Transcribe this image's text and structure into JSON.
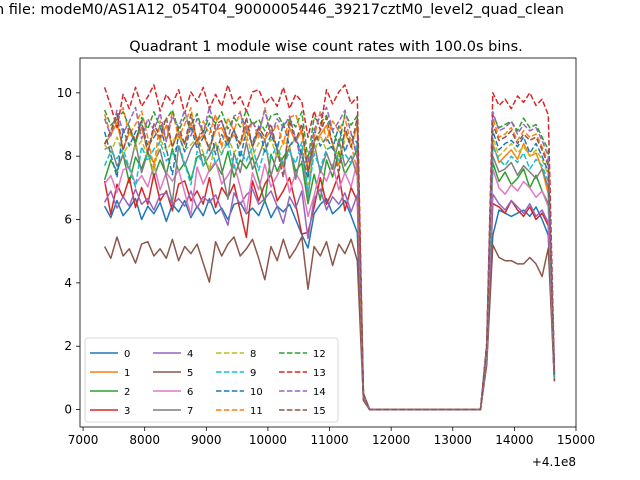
{
  "chart_data": {
    "type": "line",
    "suptitle": "n file: modeM0/AS1A12_054T04_9000005446_39217cztM0_level2_quad_clean",
    "title": "Quadrant 1 module wise count rates with 100.0s bins.",
    "xlabel": "",
    "ylabel": "",
    "x_offset_label": "+4.1e8",
    "xlim": [
      6950,
      15000
    ],
    "ylim": [
      -0.55,
      11.1
    ],
    "xticks": [
      7000,
      8000,
      9000,
      10000,
      11000,
      12000,
      13000,
      14000,
      15000
    ],
    "xtick_labels": [
      "7000",
      "8000",
      "9000",
      "10000",
      "11000",
      "12000",
      "13000",
      "14000",
      "15000"
    ],
    "yticks": [
      0,
      2,
      4,
      6,
      8,
      10
    ],
    "ytick_labels": [
      "0",
      "2",
      "4",
      "6",
      "8",
      "10"
    ],
    "grid": false,
    "legend_position": "lower-left",
    "x": {
      "start": 7350,
      "step": 100,
      "segment1_end": 11650,
      "gap_fill_from": 11650,
      "gap_fill_to": 13450,
      "segment2_start": 13550,
      "segment2_end": 14650
    },
    "series": [
      {
        "name": "0",
        "color": "#1f77b4",
        "dash": "solid",
        "base": 6.3,
        "dip11600": 0.3,
        "seg2": [
          1.5,
          5.5,
          6.3,
          6.2,
          6.1,
          6.2,
          6.3,
          6.1,
          6.4,
          6.0,
          5.5,
          0.9
        ]
      },
      {
        "name": "1",
        "color": "#ff7f0e",
        "dash": "solid",
        "base": 8.6,
        "dip11600": 0.5,
        "seg2": [
          1.8,
          8.4,
          7.8,
          8.0,
          8.2,
          7.9,
          8.4,
          8.0,
          8.1,
          7.6,
          6.8,
          1.1
        ]
      },
      {
        "name": "2",
        "color": "#2ca02c",
        "dash": "solid",
        "base": 7.7,
        "dip11600": 0.4,
        "seg2": [
          1.7,
          7.8,
          7.2,
          7.5,
          7.1,
          7.3,
          7.6,
          7.0,
          7.4,
          6.9,
          6.5,
          1.0
        ]
      },
      {
        "name": "3",
        "color": "#d62728",
        "dash": "solid",
        "base": 6.8,
        "dip11600": 0.3,
        "seg2": [
          1.6,
          6.5,
          6.4,
          6.2,
          6.6,
          6.3,
          6.1,
          6.4,
          6.0,
          6.2,
          5.8,
          0.9
        ]
      },
      {
        "name": "4",
        "color": "#9467bd",
        "dash": "solid",
        "base": 6.6,
        "dip11600": 0.3,
        "seg2": [
          1.6,
          6.8,
          6.5,
          6.3,
          6.6,
          6.4,
          6.2,
          6.5,
          6.1,
          6.3,
          5.9,
          0.9
        ]
      },
      {
        "name": "5",
        "color": "#8c564b",
        "dash": "solid",
        "base": 5.0,
        "dip11600": 0.3,
        "seg2": [
          1.4,
          5.2,
          4.8,
          4.7,
          4.7,
          4.6,
          4.6,
          4.8,
          4.6,
          4.2,
          5.1,
          0.9
        ]
      },
      {
        "name": "6",
        "color": "#e377c2",
        "dash": "solid",
        "base": 7.3,
        "dip11600": 0.4,
        "seg2": [
          1.7,
          7.6,
          7.0,
          6.8,
          7.1,
          6.9,
          7.2,
          7.0,
          6.7,
          6.9,
          6.4,
          1.0
        ]
      },
      {
        "name": "7",
        "color": "#7f7f7f",
        "dash": "solid",
        "base": 7.9,
        "dip11600": 0.4,
        "seg2": [
          1.8,
          8.0,
          7.5,
          7.6,
          7.8,
          7.4,
          7.7,
          7.5,
          7.3,
          7.6,
          7.0,
          1.0
        ]
      },
      {
        "name": "8",
        "color": "#bcbd22",
        "dash": "dashed",
        "base": 8.3,
        "dip11600": 0.5,
        "seg2": [
          1.8,
          8.6,
          8.0,
          8.2,
          8.4,
          8.1,
          8.3,
          8.0,
          8.2,
          7.9,
          7.4,
          1.1
        ]
      },
      {
        "name": "9",
        "color": "#17becf",
        "dash": "dashed",
        "base": 8.0,
        "dip11600": 0.5,
        "seg2": [
          1.8,
          8.3,
          7.9,
          7.7,
          8.0,
          7.8,
          8.1,
          7.6,
          7.9,
          7.7,
          7.2,
          1.0
        ]
      },
      {
        "name": "10",
        "color": "#1f77b4",
        "dash": "dashed",
        "base": 8.5,
        "dip11600": 0.5,
        "seg2": [
          1.9,
          8.8,
          8.2,
          8.4,
          8.5,
          8.3,
          8.6,
          8.1,
          8.4,
          8.0,
          7.5,
          1.1
        ]
      },
      {
        "name": "11",
        "color": "#ff7f0e",
        "dash": "dashed",
        "base": 8.9,
        "dip11600": 0.5,
        "seg2": [
          2.0,
          9.2,
          8.6,
          8.7,
          8.9,
          8.5,
          8.8,
          8.6,
          8.7,
          8.3,
          7.8,
          1.2
        ]
      },
      {
        "name": "12",
        "color": "#2ca02c",
        "dash": "dashed",
        "base": 9.1,
        "dip11600": 0.5,
        "seg2": [
          2.0,
          9.3,
          8.9,
          9.0,
          9.1,
          8.8,
          9.2,
          8.9,
          9.0,
          8.6,
          8.2,
          1.2
        ]
      },
      {
        "name": "13",
        "color": "#d62728",
        "dash": "dashed",
        "base": 9.8,
        "dip11600": 0.5,
        "seg2": [
          2.1,
          10.0,
          9.6,
          9.8,
          9.5,
          9.9,
          9.7,
          10.0,
          9.6,
          9.8,
          9.3,
          1.3
        ]
      },
      {
        "name": "14",
        "color": "#9467bd",
        "dash": "dashed",
        "base": 9.0,
        "dip11600": 0.5,
        "seg2": [
          2.0,
          9.4,
          8.8,
          8.9,
          9.1,
          8.7,
          9.0,
          8.8,
          8.9,
          8.5,
          8.0,
          1.2
        ]
      },
      {
        "name": "15",
        "color": "#8c564b",
        "dash": "dashed",
        "base": 8.7,
        "dip11600": 0.5,
        "seg2": [
          1.9,
          9.0,
          8.5,
          8.6,
          8.8,
          8.4,
          8.7,
          8.5,
          8.6,
          8.2,
          7.7,
          1.1
        ]
      }
    ],
    "seg1_pattern": [
      0.2,
      -0.4,
      0.5,
      -0.3,
      0.1,
      0.6,
      -0.5,
      0.2,
      -0.2,
      0.4,
      -0.6,
      0.3,
      -0.1,
      0.5,
      -0.4,
      0.2,
      -0.3,
      0.6,
      -0.2,
      0.1,
      -0.5,
      0.3,
      0.4,
      -0.2,
      0.1,
      -0.3,
      0.5,
      -0.4,
      0.2,
      -0.1,
      0.3,
      -0.5,
      -1.3,
      0.4,
      -0.2,
      0.3,
      0.6,
      -0.2,
      0.1,
      0.5,
      -0.3,
      -1.2
    ]
  }
}
